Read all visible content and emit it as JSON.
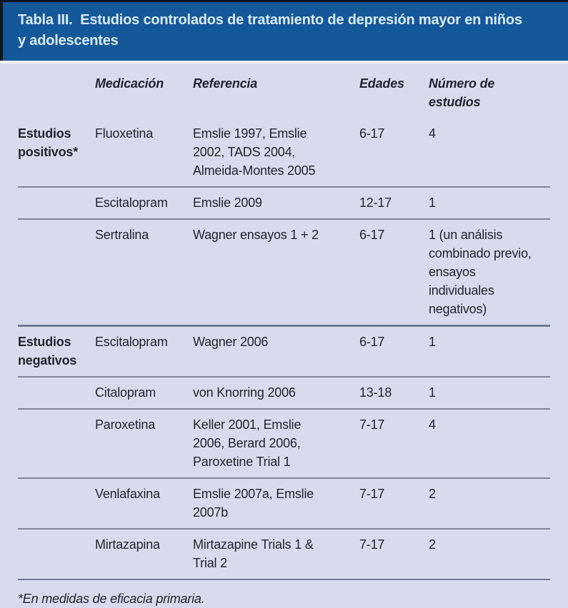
{
  "title": "Tabla III.  Estudios controlados de tratamiento de depresión mayor en niños\ny adolescentes",
  "table": {
    "columns": {
      "group": "",
      "medication": "Medicación",
      "reference": "Referencia",
      "ages": "Edades",
      "studies": "Número de estudios"
    },
    "rows": [
      {
        "group": "Estudios\npositivos*",
        "medication": "Fluoxetina",
        "reference": "Emslie 1997, Emslie\n2002, TADS 2004,\nAlmeida-Montes 2005",
        "ages": "6-17",
        "studies": "4",
        "section_start": false
      },
      {
        "group": "",
        "medication": "Escitalopram",
        "reference": "Emslie 2009",
        "ages": "12-17",
        "studies": "1",
        "section_start": false
      },
      {
        "group": "",
        "medication": "Sertralina",
        "reference": "Wagner ensayos 1 + 2",
        "ages": "6-17",
        "studies": "1 (un análisis\ncombinado previo,\nensayos individuales\nnegativos)",
        "section_start": false
      },
      {
        "group": "Estudios\nnegativos",
        "medication": "Escitalopram",
        "reference": "Wagner 2006",
        "ages": "6-17",
        "studies": "1",
        "section_start": true
      },
      {
        "group": "",
        "medication": "Citalopram",
        "reference": "von Knorring 2006",
        "ages": "13-18",
        "studies": "1",
        "section_start": false
      },
      {
        "group": "",
        "medication": "Paroxetina",
        "reference": "Keller 2001, Emslie\n2006, Berard 2006,\nParoxetine Trial 1",
        "ages": "7-17",
        "studies": "4",
        "section_start": false
      },
      {
        "group": "",
        "medication": "Venlafaxina",
        "reference": "Emslie 2007a, Emslie\n2007b",
        "ages": "7-17",
        "studies": "2",
        "section_start": false
      },
      {
        "group": "",
        "medication": "Mirtazapina",
        "reference": "Mirtazapine Trials 1 &\nTrial 2",
        "ages": "7-17",
        "studies": "2",
        "section_start": false
      }
    ]
  },
  "footnote": "*En medidas de eficacia primaria.",
  "colors": {
    "header_bg": "#15589a",
    "header_text": "#d9ecf8",
    "page_bg": "#d8dbee",
    "body_text": "#22262e",
    "row_divider": "#7f8597",
    "section_divider": "#6f7a95",
    "header_edge": "#10141c"
  }
}
